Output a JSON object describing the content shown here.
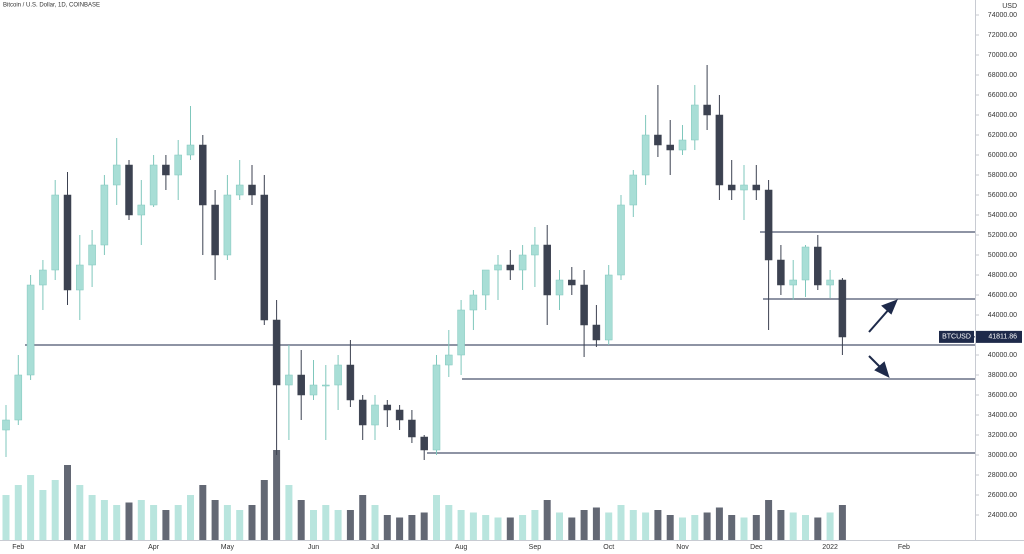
{
  "chart_data": {
    "type": "candlestick",
    "title": "Bitcoin / U.S. Dollar, 1D, COINBASE",
    "y_axis_label": "USD",
    "categories": [
      null,
      "Feb",
      null,
      null,
      null,
      null,
      "Mar",
      null,
      null,
      null,
      null,
      null,
      "Apr",
      null,
      null,
      null,
      null,
      null,
      "May",
      null,
      null,
      null,
      null,
      null,
      null,
      "Jun",
      null,
      null,
      null,
      null,
      "Jul",
      null,
      null,
      null,
      null,
      null,
      null,
      "Aug",
      null,
      null,
      null,
      null,
      null,
      "Sep",
      null,
      null,
      null,
      null,
      null,
      "Oct",
      null,
      null,
      null,
      null,
      null,
      "Nov",
      null,
      null,
      null,
      null,
      null,
      "Dec",
      null,
      null,
      null,
      null,
      null,
      "2022",
      null,
      null,
      null,
      null,
      null,
      "Feb"
    ],
    "open": [
      32500,
      33500,
      38000,
      47000,
      48500,
      56000,
      46500,
      49000,
      51000,
      57000,
      59000,
      54000,
      55000,
      59000,
      58000,
      60000,
      61000,
      55000,
      50000,
      56000,
      57000,
      56000,
      43500,
      37000,
      38000,
      36000,
      37000,
      37000,
      39000,
      35500,
      33000,
      35000,
      34500,
      33500,
      31800,
      30500,
      39000,
      40000,
      44500,
      46000,
      48500,
      49000,
      48500,
      50000,
      51000,
      46000,
      47500,
      47000,
      43000,
      41500,
      48000,
      55000,
      58000,
      62000,
      61000,
      60500,
      61500,
      65000,
      64000,
      57000,
      56500,
      57000,
      56500,
      49500,
      47000,
      47500,
      50800,
      47000,
      47500,
      null,
      null,
      null,
      null,
      null
    ],
    "high": [
      35000,
      40000,
      48000,
      49500,
      57500,
      58300,
      52000,
      52500,
      58000,
      61700,
      59500,
      57500,
      60000,
      60000,
      61500,
      64900,
      62000,
      56500,
      58000,
      59500,
      59000,
      58000,
      45500,
      41000,
      40500,
      39500,
      39000,
      40000,
      41500,
      36000,
      36000,
      35500,
      35000,
      34500,
      32000,
      40000,
      42500,
      45500,
      46500,
      48500,
      50000,
      50500,
      51000,
      52800,
      53000,
      48500,
      48800,
      48500,
      45000,
      49000,
      56000,
      58500,
      64000,
      67000,
      63500,
      63000,
      67000,
      69000,
      66000,
      59500,
      59000,
      59000,
      57500,
      51000,
      49500,
      51000,
      52000,
      48500,
      47700,
      null,
      null,
      null,
      null,
      null
    ],
    "low": [
      29800,
      33000,
      37500,
      44500,
      47500,
      45000,
      43500,
      46800,
      50000,
      55000,
      53500,
      51000,
      54800,
      56500,
      55500,
      59500,
      50000,
      47500,
      49500,
      55500,
      55000,
      43000,
      30000,
      31500,
      33500,
      35500,
      31500,
      34500,
      34800,
      31500,
      31500,
      32800,
      32500,
      31200,
      29500,
      30000,
      37800,
      38000,
      42500,
      44500,
      45500,
      47500,
      46500,
      46800,
      43000,
      44500,
      46000,
      39800,
      40800,
      41000,
      47500,
      53800,
      57000,
      59800,
      58000,
      60000,
      60500,
      62500,
      55500,
      55500,
      53500,
      55500,
      42500,
      46000,
      45500,
      45800,
      46500,
      45700,
      40000,
      null,
      null,
      null,
      null,
      null
    ],
    "close": [
      33500,
      38000,
      47000,
      48500,
      56000,
      46500,
      49000,
      51000,
      57000,
      59000,
      54000,
      55000,
      59000,
      58000,
      60000,
      61000,
      55000,
      50000,
      56000,
      57000,
      56000,
      43500,
      37000,
      38000,
      36000,
      37000,
      37000,
      39000,
      35500,
      33000,
      35000,
      34500,
      33500,
      31800,
      30500,
      39000,
      40000,
      44500,
      46000,
      48500,
      49000,
      48500,
      50000,
      51000,
      46000,
      47500,
      47000,
      43000,
      41500,
      48000,
      55000,
      58000,
      62000,
      61000,
      60500,
      61500,
      65000,
      64000,
      57000,
      56500,
      57000,
      56500,
      49500,
      47000,
      47500,
      50800,
      47000,
      47500,
      41800,
      null,
      null,
      null,
      null,
      null
    ],
    "volume": [
      90,
      110,
      130,
      100,
      120,
      150,
      110,
      90,
      80,
      70,
      75,
      80,
      70,
      60,
      70,
      90,
      110,
      80,
      70,
      60,
      70,
      120,
      180,
      110,
      80,
      60,
      70,
      60,
      60,
      90,
      70,
      50,
      45,
      50,
      55,
      90,
      70,
      60,
      55,
      50,
      45,
      45,
      50,
      60,
      80,
      55,
      45,
      60,
      65,
      55,
      70,
      60,
      55,
      60,
      50,
      45,
      50,
      55,
      65,
      50,
      45,
      50,
      80,
      60,
      55,
      50,
      45,
      55,
      70,
      null,
      null,
      null,
      null,
      null
    ],
    "up_color": "#a8ded6",
    "down_color": "#3c4251",
    "levels": [
      41000,
      37600,
      30200,
      45600,
      52300
    ],
    "level_color": "#1e2a4a",
    "last_price": {
      "label": "BTCUSD",
      "value": 41811.86
    },
    "ylim": [
      21500,
      75500
    ],
    "yticks": [
      {
        "value": 24000,
        "label": "24000.00"
      },
      {
        "value": 26000,
        "label": "26000.00"
      },
      {
        "value": 28000,
        "label": "28000.00"
      },
      {
        "value": 30000,
        "label": "30000.00"
      },
      {
        "value": 32000,
        "label": "32000.00"
      },
      {
        "value": 34000,
        "label": "34000.00"
      },
      {
        "value": 36000,
        "label": "36000.00"
      },
      {
        "value": 38000,
        "label": "38000.00"
      },
      {
        "value": 40000,
        "label": "40000.00"
      },
      {
        "value": 42000,
        "label": "42000.00"
      },
      {
        "value": 44000,
        "label": "44000.00"
      },
      {
        "value": 46000,
        "label": "46000.00"
      },
      {
        "value": 48000,
        "label": "48000.00"
      },
      {
        "value": 50000,
        "label": "50000.00"
      },
      {
        "value": 52000,
        "label": "52000.00"
      },
      {
        "value": 54000,
        "label": "54000.00"
      },
      {
        "value": 56000,
        "label": "56000.00"
      },
      {
        "value": 58000,
        "label": "58000.00"
      },
      {
        "value": 60000,
        "label": "60000.00"
      },
      {
        "value": 62000,
        "label": "62000.00"
      },
      {
        "value": 64000,
        "label": "64000.00"
      },
      {
        "value": 66000,
        "label": "66000.00"
      },
      {
        "value": 68000,
        "label": "68000.00"
      },
      {
        "value": 70000,
        "label": "70000.00"
      },
      {
        "value": 72000,
        "label": "72000.00"
      },
      {
        "value": 74000,
        "label": "74000.00"
      }
    ],
    "grid": false
  }
}
